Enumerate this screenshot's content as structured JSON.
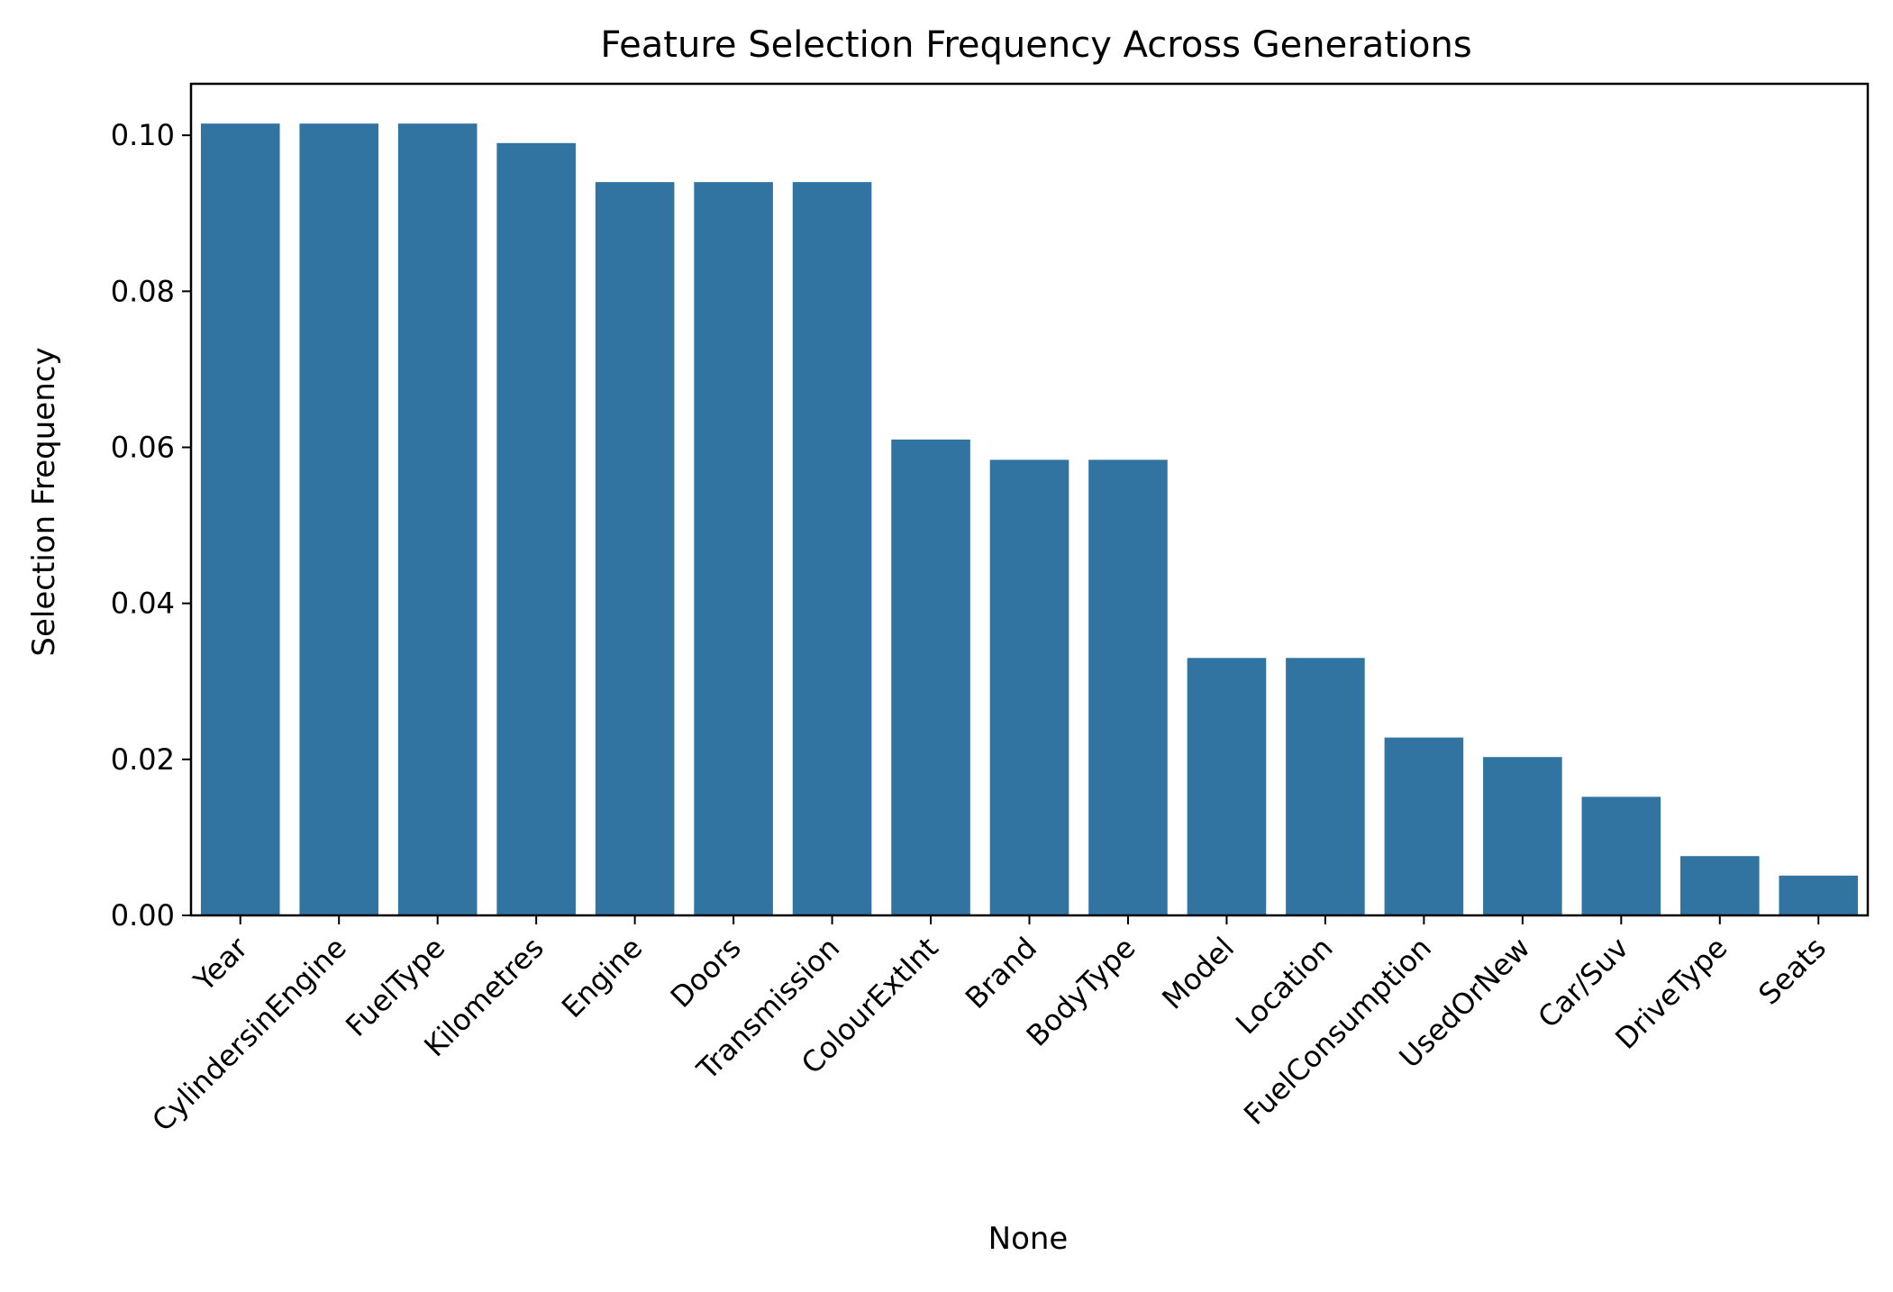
{
  "chart_data": {
    "type": "bar",
    "title": "Feature Selection Frequency Across Generations",
    "xlabel": "None",
    "ylabel": "Selection Frequency",
    "categories": [
      "Year",
      "CylindersinEngine",
      "FuelType",
      "Kilometres",
      "Engine",
      "Doors",
      "Transmission",
      "ColourExtInt",
      "Brand",
      "BodyType",
      "Model",
      "Location",
      "FuelConsumption",
      "UsedOrNew",
      "Car/Suv",
      "DriveType",
      "Seats"
    ],
    "values": [
      0.1015,
      0.1015,
      0.1015,
      0.099,
      0.094,
      0.094,
      0.094,
      0.061,
      0.0584,
      0.0584,
      0.033,
      0.033,
      0.0228,
      0.0203,
      0.0152,
      0.0076,
      0.0051
    ],
    "ylim": [
      0,
      0.1066
    ],
    "yticks": [
      "0.00",
      "0.02",
      "0.04",
      "0.06",
      "0.08",
      "0.10"
    ],
    "bar_color": "#3274a1",
    "grid": false
  }
}
